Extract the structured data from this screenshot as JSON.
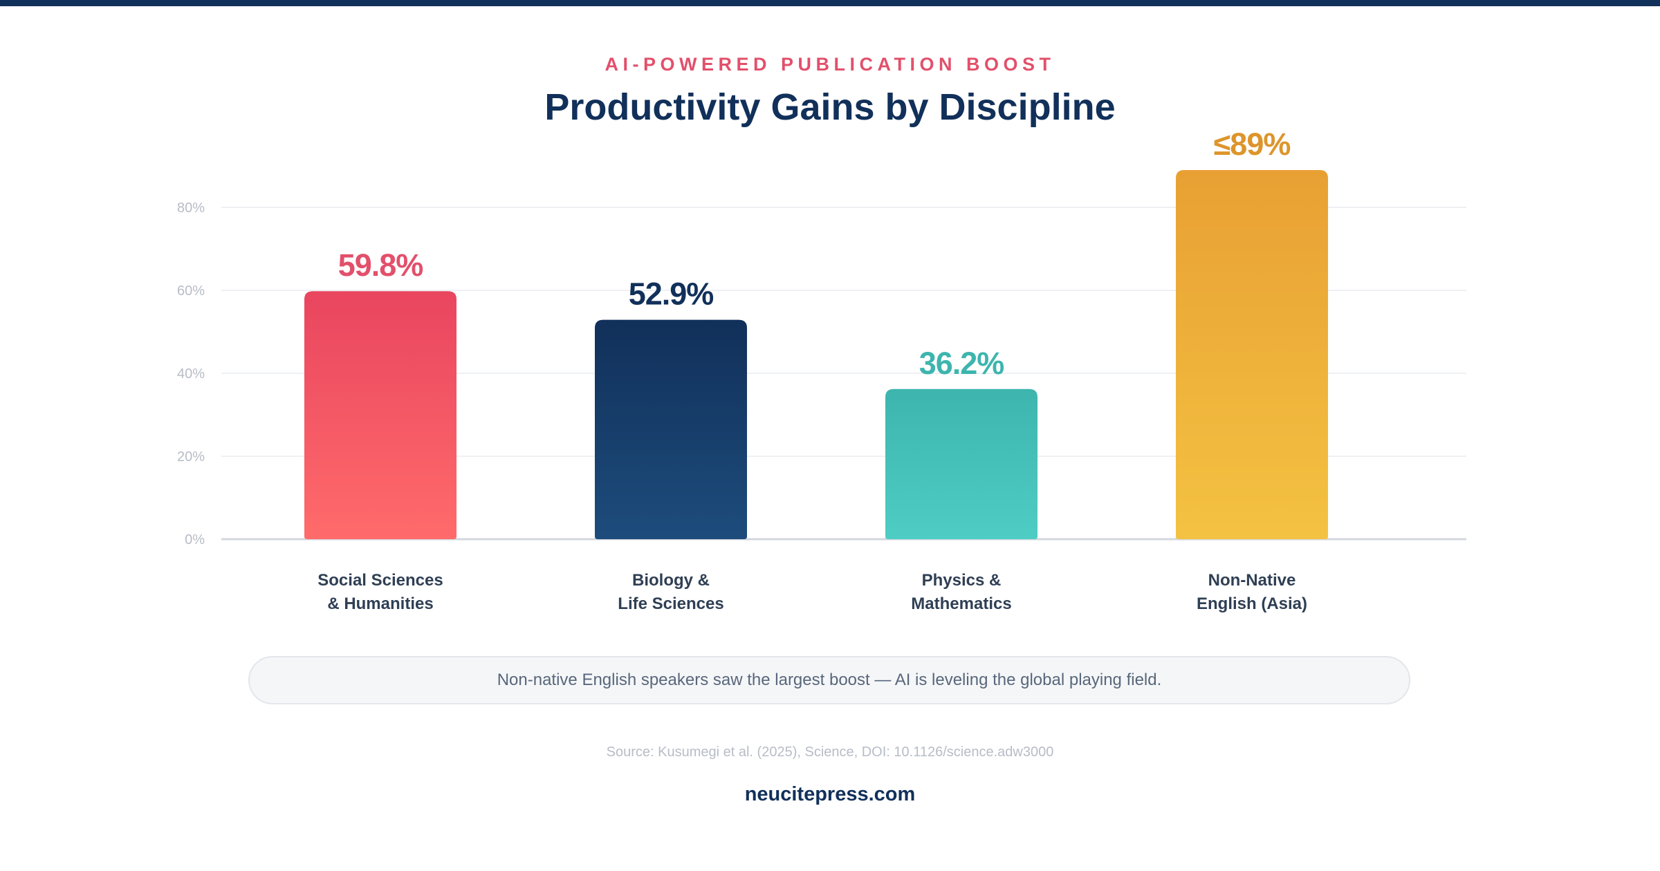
{
  "header": {
    "eyebrow": "AI-POWERED PUBLICATION BOOST",
    "title": "Productivity Gains by Discipline"
  },
  "chart_data": {
    "type": "bar",
    "categories": [
      [
        "Social Sciences",
        "& Humanities"
      ],
      [
        "Biology &",
        "Life Sciences"
      ],
      [
        "Physics &",
        "Mathematics"
      ],
      [
        "Non-Native",
        "English (Asia)"
      ]
    ],
    "values": [
      59.8,
      52.9,
      36.2,
      89
    ],
    "value_labels": [
      "59.8%",
      "52.9%",
      "36.2%",
      "≤89%"
    ],
    "colors": [
      {
        "top": "#e9455f",
        "bottom": "#ff6b6b",
        "label": "#e2506b"
      },
      {
        "top": "#11305a",
        "bottom": "#1d4c7c",
        "label": "#11305a"
      },
      {
        "top": "#3db5ae",
        "bottom": "#4ecdc4",
        "label": "#3db5ae"
      },
      {
        "top": "#e8a033",
        "bottom": "#f4c242",
        "label": "#dd952b"
      }
    ],
    "yticks": [
      "0%",
      "20%",
      "40%",
      "60%",
      "80%"
    ],
    "ylim": [
      0,
      80
    ],
    "grid": true
  },
  "callout": {
    "text": "Non-native English speakers saw the largest boost — AI is leveling the global playing field."
  },
  "footer": {
    "source": "Source: Kusumegi et al. (2025), Science, DOI: 10.1126/science.adw3000",
    "site": "neucitepress.com"
  }
}
